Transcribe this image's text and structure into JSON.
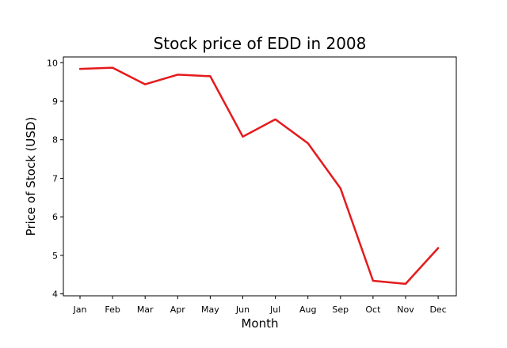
{
  "chart_data": {
    "type": "line",
    "title": "Stock price of EDD in 2008",
    "xlabel": "Month",
    "ylabel": "Price of Stock (USD)",
    "categories": [
      "Jan",
      "Feb",
      "Mar",
      "Apr",
      "May",
      "Jun",
      "Jul",
      "Aug",
      "Sep",
      "Oct",
      "Nov",
      "Dec"
    ],
    "series": [
      {
        "values": [
          9.84,
          9.87,
          9.44,
          9.69,
          9.65,
          8.08,
          8.53,
          7.91,
          6.74,
          4.34,
          4.26,
          5.19
        ],
        "color": "#e41a1c"
      }
    ],
    "ylim": [
      3.95,
      10.15
    ],
    "yticks": [
      4,
      5,
      6,
      7,
      8,
      9,
      10
    ],
    "grid": false,
    "legend": "none"
  }
}
